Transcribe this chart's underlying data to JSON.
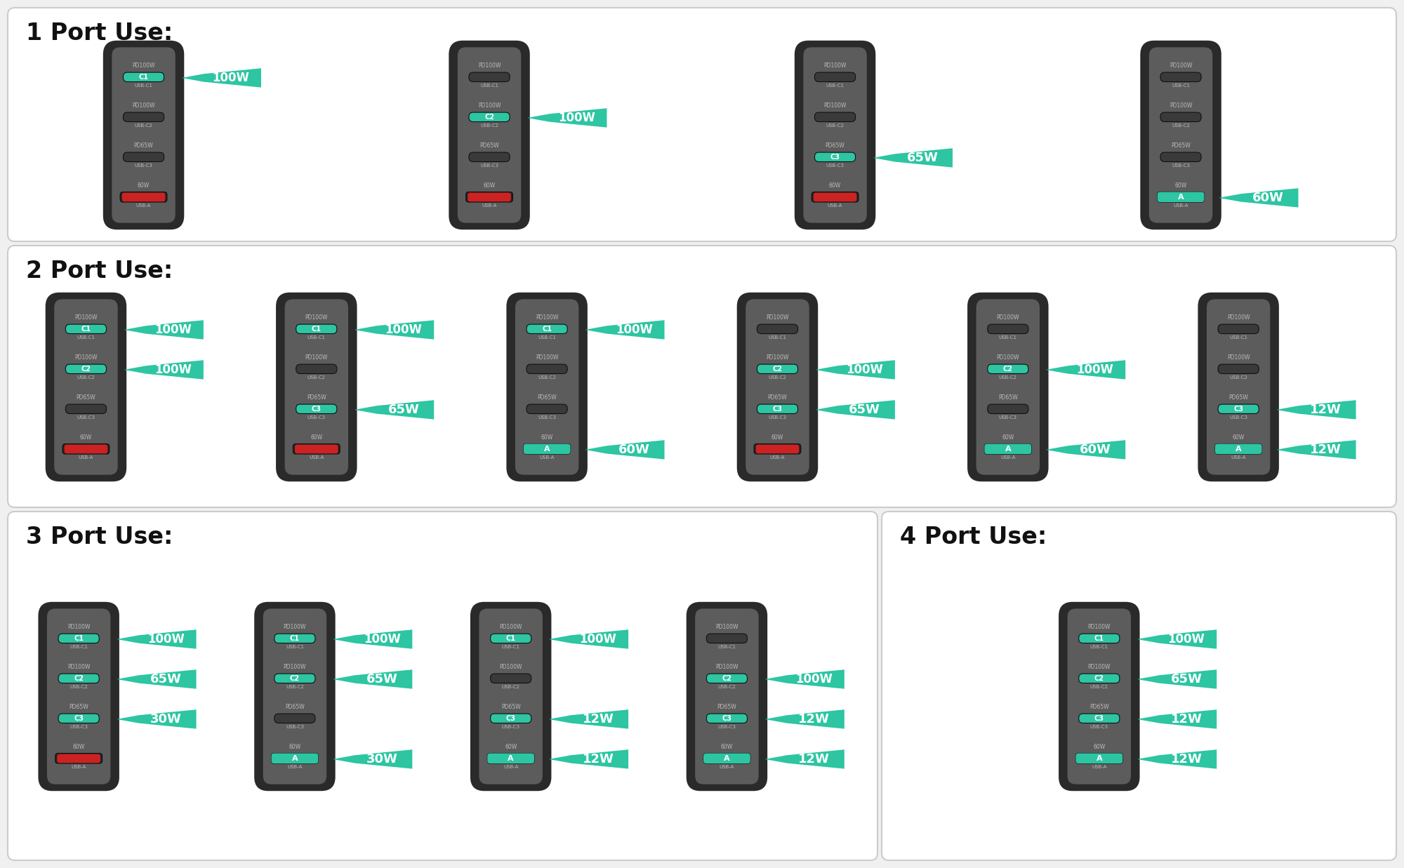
{
  "bg_color": "#f0f0f0",
  "section_bg": "#ffffff",
  "section_border": "#cccccc",
  "charger_outer_color": "#2a2a2a",
  "charger_inner_color": "#5c5c5c",
  "charger_rim_color": "#888888",
  "port_active_color": "#2dc5a2",
  "port_inactive_usbc_color": "#3a3a3a",
  "port_usba_active_bg": "#cc2222",
  "port_usba_inactive_bg": "#3a3a3a",
  "arrow_color": "#2dc5a2",
  "text_white": "#ffffff",
  "title_color": "#111111",
  "sections": [
    {
      "title": "1 Port Use:",
      "configs": [
        {
          "active_ports": [
            0
          ],
          "labels": [
            "100W"
          ]
        },
        {
          "active_ports": [
            1
          ],
          "labels": [
            "100W"
          ]
        },
        {
          "active_ports": [
            2
          ],
          "labels": [
            "65W"
          ]
        },
        {
          "active_ports": [
            3
          ],
          "labels": [
            "60W"
          ]
        }
      ]
    },
    {
      "title": "2 Port Use:",
      "configs": [
        {
          "active_ports": [
            0,
            1
          ],
          "labels": [
            "100W",
            "100W"
          ]
        },
        {
          "active_ports": [
            0,
            2
          ],
          "labels": [
            "100W",
            "65W"
          ]
        },
        {
          "active_ports": [
            0,
            3
          ],
          "labels": [
            "100W",
            "60W"
          ]
        },
        {
          "active_ports": [
            1,
            2
          ],
          "labels": [
            "100W",
            "65W"
          ]
        },
        {
          "active_ports": [
            1,
            3
          ],
          "labels": [
            "100W",
            "60W"
          ]
        },
        {
          "active_ports": [
            2,
            3
          ],
          "labels": [
            "12W",
            "12W"
          ]
        }
      ]
    },
    {
      "title": "3 Port Use:",
      "configs": [
        {
          "active_ports": [
            0,
            1,
            2
          ],
          "labels": [
            "100W",
            "65W",
            "30W"
          ]
        },
        {
          "active_ports": [
            0,
            1,
            3
          ],
          "labels": [
            "100W",
            "65W",
            "30W"
          ]
        },
        {
          "active_ports": [
            0,
            2,
            3
          ],
          "labels": [
            "100W",
            "12W",
            "12W"
          ]
        },
        {
          "active_ports": [
            1,
            2,
            3
          ],
          "labels": [
            "100W",
            "12W",
            "12W"
          ]
        }
      ]
    },
    {
      "title": "4 Port Use:",
      "configs": [
        {
          "active_ports": [
            0,
            1,
            2,
            3
          ],
          "labels": [
            "100W",
            "65W",
            "12W",
            "12W"
          ]
        }
      ]
    }
  ],
  "port_labels": [
    "C1",
    "C2",
    "C3",
    "A"
  ],
  "port_sublabels": [
    "USB-C1",
    "USB-C2",
    "USB-C3",
    "USB-A"
  ],
  "port_top_labels": [
    "PD100W",
    "PD100W",
    "PD65W",
    "60W"
  ]
}
